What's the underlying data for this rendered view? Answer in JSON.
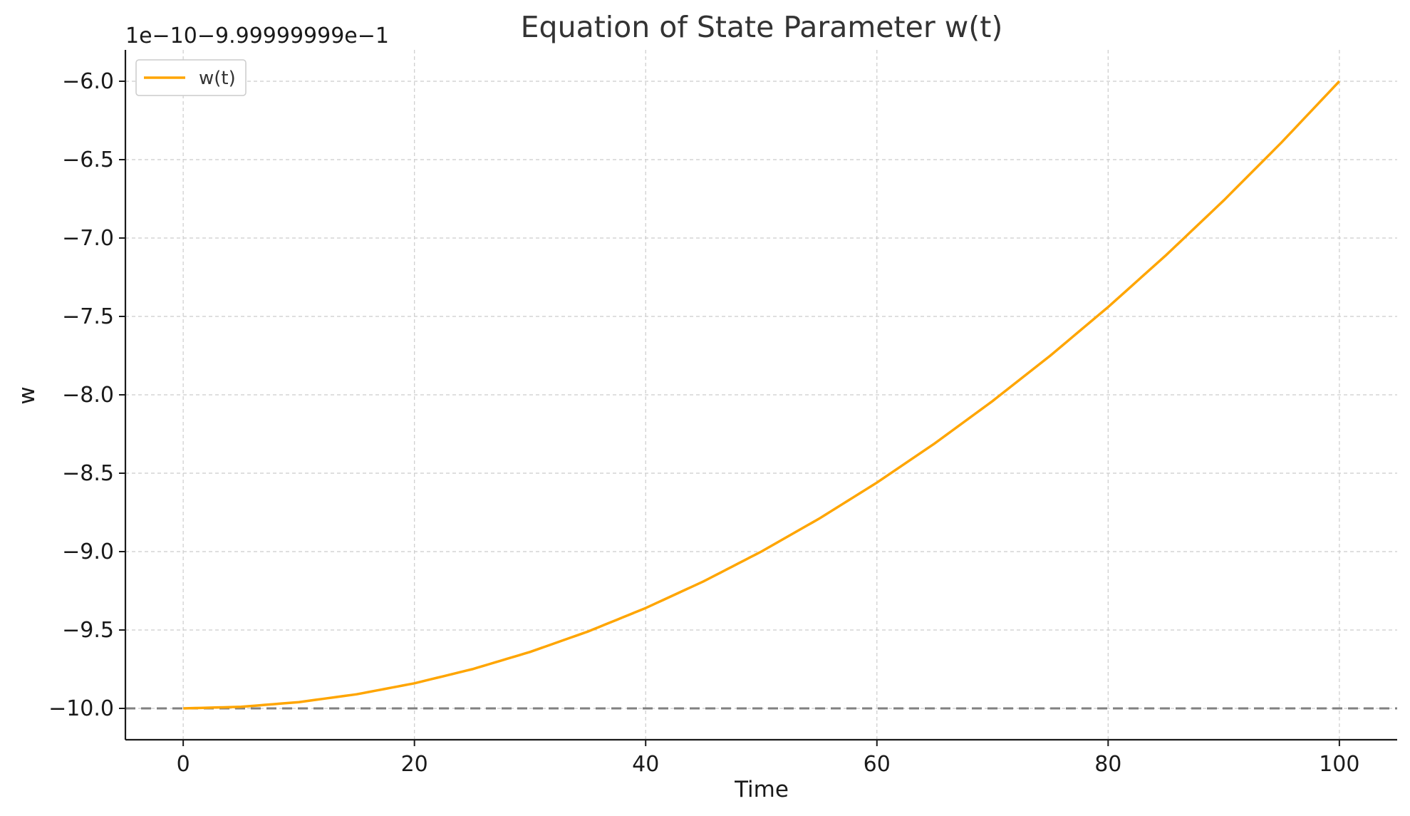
{
  "chart_data": {
    "type": "line",
    "title": "Equation of State Parameter w(t)",
    "xlabel": "Time",
    "ylabel": "w",
    "offset_text": "1e−10−9.99999999e−1",
    "xlim": [
      -5,
      105
    ],
    "ylim": [
      -10.2,
      -5.8
    ],
    "x_ticks": [
      0,
      20,
      40,
      60,
      80,
      100
    ],
    "x_tick_labels": [
      "0",
      "20",
      "40",
      "60",
      "80",
      "100"
    ],
    "y_ticks": [
      -6.0,
      -6.5,
      -7.0,
      -7.5,
      -8.0,
      -8.5,
      -9.0,
      -9.5,
      -10.0
    ],
    "y_tick_labels": [
      "−6.0",
      "−6.5",
      "−7.0",
      "−7.5",
      "−8.0",
      "−8.5",
      "−9.0",
      "−9.5",
      "−10.0"
    ],
    "grid": true,
    "legend_position": "top-left",
    "series": [
      {
        "name": "w(t)",
        "color": "#FFA500",
        "x": [
          0,
          5,
          10,
          15,
          20,
          25,
          30,
          35,
          40,
          45,
          50,
          55,
          60,
          65,
          70,
          75,
          80,
          85,
          90,
          95,
          100
        ],
        "y": [
          -10.0,
          -9.99,
          -9.96,
          -9.91,
          -9.84,
          -9.75,
          -9.64,
          -9.51,
          -9.36,
          -9.19,
          -9.0,
          -8.79,
          -8.56,
          -8.31,
          -8.04,
          -7.75,
          -7.44,
          -7.11,
          -6.76,
          -6.39,
          -6.0
        ]
      }
    ],
    "reference_lines": [
      {
        "y": -10.0,
        "style": "dashed",
        "color": "#808080"
      }
    ]
  }
}
